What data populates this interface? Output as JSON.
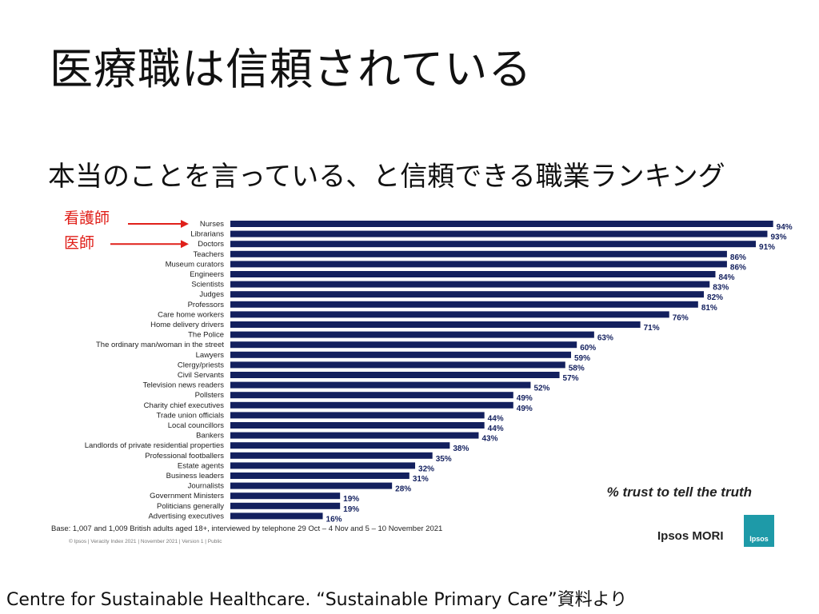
{
  "slide": {
    "title": "医療職は信頼されている",
    "subtitle": "本当のことを言っている、と信頼できる職業ランキング",
    "source": "Centre for Sustainable Healthcare. “Sustainable Primary Care”資料より"
  },
  "annotations": [
    {
      "label": "看護師",
      "target": "Nurses",
      "color": "#e0201a"
    },
    {
      "label": "医師",
      "target": "Doctors",
      "color": "#e0201a"
    }
  ],
  "chart_data": {
    "type": "bar",
    "orientation": "horizontal",
    "title": "% trust to tell the truth",
    "categories": [
      "Nurses",
      "Librarians",
      "Doctors",
      "Teachers",
      "Museum curators",
      "Engineers",
      "Scientists",
      "Judges",
      "Professors",
      "Care home workers",
      "Home delivery drivers",
      "The Police",
      "The ordinary man/woman in the street",
      "Lawyers",
      "Clergy/priests",
      "Civil Servants",
      "Television news readers",
      "Pollsters",
      "Charity chief executives",
      "Trade union officials",
      "Local councillors",
      "Bankers",
      "Landlords of private residential properties",
      "Professional footballers",
      "Estate agents",
      "Business leaders",
      "Journalists",
      "Government Ministers",
      "Politicians generally",
      "Advertising executives"
    ],
    "values": [
      94,
      93,
      91,
      86,
      86,
      84,
      83,
      82,
      81,
      76,
      71,
      63,
      60,
      59,
      58,
      57,
      52,
      49,
      49,
      44,
      44,
      43,
      38,
      35,
      32,
      31,
      28,
      19,
      19,
      16
    ],
    "value_suffix": "%",
    "bar_color": "#13205e",
    "xlim": [
      0,
      100
    ],
    "grid": false,
    "base_note": "Base: 1,007 and 1,009 British adults aged 18+, interviewed by telephone 29 Oct – 4 Nov and 5 – 10 November 2021",
    "copyright": "© Ipsos | Veracity Index 2021 | November 2021 | Version 1 | Public"
  },
  "branding": {
    "name": "Ipsos MORI",
    "logo_text": "Ipsos",
    "logo_color": "#1e9aa8"
  }
}
